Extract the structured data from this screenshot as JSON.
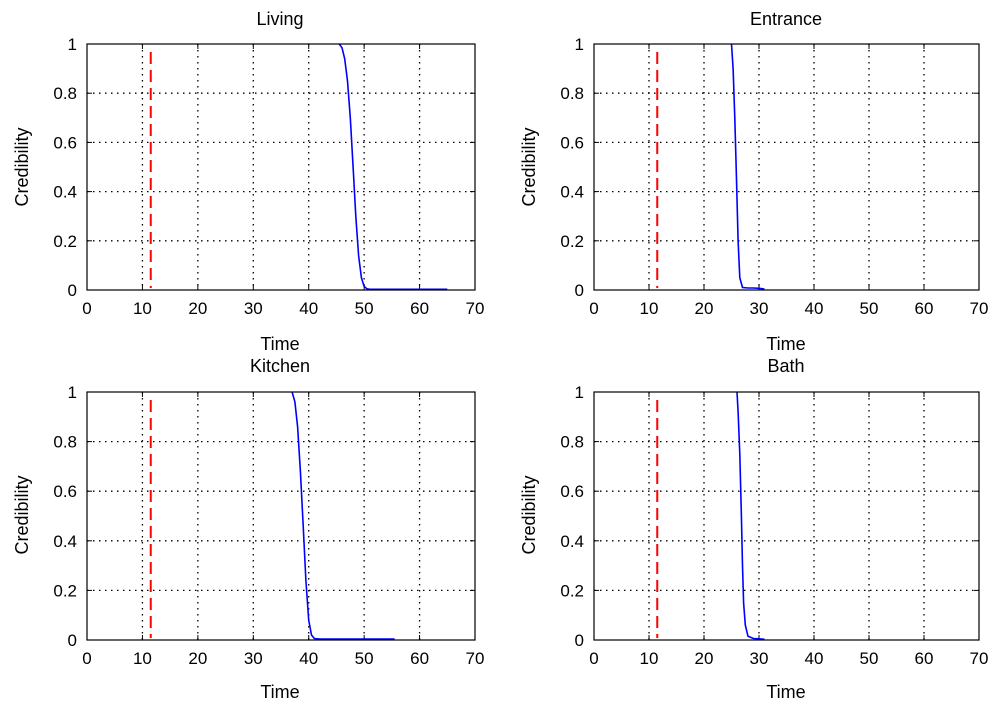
{
  "colors": {
    "axis": "#000000",
    "grid": "#000000",
    "series": "#0000ff",
    "marker": "#ff0000",
    "background": "#ffffff"
  },
  "chart_data": [
    {
      "type": "line",
      "title": "Living",
      "xlabel": "Time",
      "ylabel": "Credibility",
      "xlim": [
        0,
        70
      ],
      "ylim": [
        0,
        1
      ],
      "xticks": [
        "0",
        "10",
        "20",
        "30",
        "40",
        "50",
        "60",
        "70"
      ],
      "yticks": [
        "0",
        "0.2",
        "0.4",
        "0.6",
        "0.8",
        "1"
      ],
      "grid": true,
      "series": [
        {
          "name": "credibility",
          "x": [
            45.5,
            46,
            46.5,
            47,
            47.5,
            48,
            48.5,
            49,
            49.5,
            50,
            50.5,
            51,
            55,
            60,
            65
          ],
          "y": [
            1.0,
            0.985,
            0.94,
            0.85,
            0.7,
            0.5,
            0.3,
            0.14,
            0.05,
            0.015,
            0.005,
            0.003,
            0.003,
            0.003,
            0.003
          ]
        }
      ],
      "marker_x": 11.5
    },
    {
      "type": "line",
      "title": "Entrance",
      "xlabel": "Time",
      "ylabel": "Credibility",
      "xlim": [
        0,
        70
      ],
      "ylim": [
        0,
        1
      ],
      "xticks": [
        "0",
        "10",
        "20",
        "30",
        "40",
        "50",
        "60",
        "70"
      ],
      "yticks": [
        "0",
        "0.2",
        "0.4",
        "0.6",
        "0.8",
        "1"
      ],
      "grid": true,
      "series": [
        {
          "name": "credibility",
          "x": [
            25,
            25.3,
            25.6,
            25.9,
            26.2,
            26.5,
            27,
            28,
            29,
            30,
            31
          ],
          "y": [
            1.0,
            0.9,
            0.7,
            0.45,
            0.2,
            0.05,
            0.01,
            0.008,
            0.008,
            0.007,
            0.004
          ]
        }
      ],
      "marker_x": 11.5
    },
    {
      "type": "line",
      "title": "Kitchen",
      "xlabel": "Time",
      "ylabel": "Credibility",
      "xlim": [
        0,
        70
      ],
      "ylim": [
        0,
        1
      ],
      "xticks": [
        "0",
        "10",
        "20",
        "30",
        "40",
        "50",
        "60",
        "70"
      ],
      "yticks": [
        "0",
        "0.2",
        "0.4",
        "0.6",
        "0.8",
        "1"
      ],
      "grid": true,
      "series": [
        {
          "name": "credibility",
          "x": [
            37,
            37.5,
            38,
            38.5,
            39,
            39.5,
            40,
            40.5,
            41,
            42,
            45,
            50,
            55.5
          ],
          "y": [
            1.0,
            0.96,
            0.86,
            0.68,
            0.46,
            0.24,
            0.08,
            0.02,
            0.006,
            0.004,
            0.004,
            0.004,
            0.004
          ]
        }
      ],
      "marker_x": 11.5
    },
    {
      "type": "line",
      "title": "Bath",
      "xlabel": "Time",
      "ylabel": "Credibility",
      "xlim": [
        0,
        70
      ],
      "ylim": [
        0,
        1
      ],
      "xticks": [
        "0",
        "10",
        "20",
        "30",
        "40",
        "50",
        "60",
        "70"
      ],
      "yticks": [
        "0",
        "0.2",
        "0.4",
        "0.6",
        "0.8",
        "1"
      ],
      "grid": true,
      "series": [
        {
          "name": "credibility",
          "x": [
            26,
            26.2,
            26.5,
            26.8,
            27,
            27.2,
            27.5,
            28,
            29,
            30,
            31
          ],
          "y": [
            1.0,
            0.92,
            0.75,
            0.5,
            0.3,
            0.15,
            0.06,
            0.015,
            0.006,
            0.005,
            0.003
          ]
        }
      ],
      "marker_x": 11.5
    }
  ]
}
